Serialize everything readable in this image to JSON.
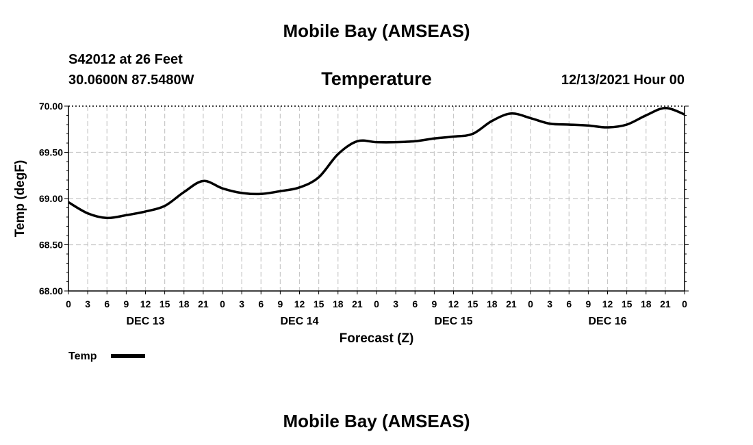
{
  "header": {
    "title": "Mobile Bay (AMSEAS)",
    "station": "S42012 at 26 Feet",
    "coords": "30.0600N  87.5480W",
    "variable": "Temperature",
    "date": "12/13/2021 Hour 00"
  },
  "footer": {
    "title": "Mobile Bay (AMSEAS)"
  },
  "chart_data": {
    "type": "line",
    "title": "Temperature",
    "xlabel": "Forecast (Z)",
    "ylabel": "Temp (degF)",
    "ylim": [
      68.0,
      70.0
    ],
    "yticks": [
      "68.00",
      "68.50",
      "69.00",
      "69.50",
      "70.00"
    ],
    "xlim": [
      0,
      96
    ],
    "xtick_labels": [
      "0",
      "3",
      "6",
      "9",
      "12",
      "15",
      "18",
      "21",
      "0",
      "3",
      "6",
      "9",
      "12",
      "15",
      "18",
      "21",
      "0",
      "3",
      "6",
      "9",
      "12",
      "15",
      "18",
      "21",
      "0",
      "3",
      "6",
      "9",
      "12",
      "15",
      "18",
      "21",
      "0"
    ],
    "day_labels": [
      {
        "label": "DEC 13",
        "hour": 12
      },
      {
        "label": "DEC 14",
        "hour": 36
      },
      {
        "label": "DEC 15",
        "hour": 60
      },
      {
        "label": "DEC 16",
        "hour": 84
      }
    ],
    "grid": true,
    "legend": {
      "position": "bottom-left"
    },
    "series": [
      {
        "name": "Temp",
        "color": "#000000",
        "x": [
          0,
          3,
          6,
          9,
          12,
          15,
          18,
          21,
          24,
          27,
          30,
          33,
          36,
          39,
          42,
          45,
          48,
          51,
          54,
          57,
          60,
          63,
          66,
          69,
          72,
          75,
          78,
          81,
          84,
          87,
          90,
          93,
          96
        ],
        "y": [
          68.96,
          68.84,
          68.79,
          68.82,
          68.86,
          68.92,
          69.07,
          69.19,
          69.11,
          69.06,
          69.05,
          69.08,
          69.12,
          69.23,
          69.48,
          69.62,
          69.61,
          69.61,
          69.62,
          69.65,
          69.67,
          69.7,
          69.84,
          69.92,
          69.87,
          69.81,
          69.8,
          69.79,
          69.77,
          69.8,
          69.9,
          69.98,
          69.91
        ]
      }
    ]
  }
}
